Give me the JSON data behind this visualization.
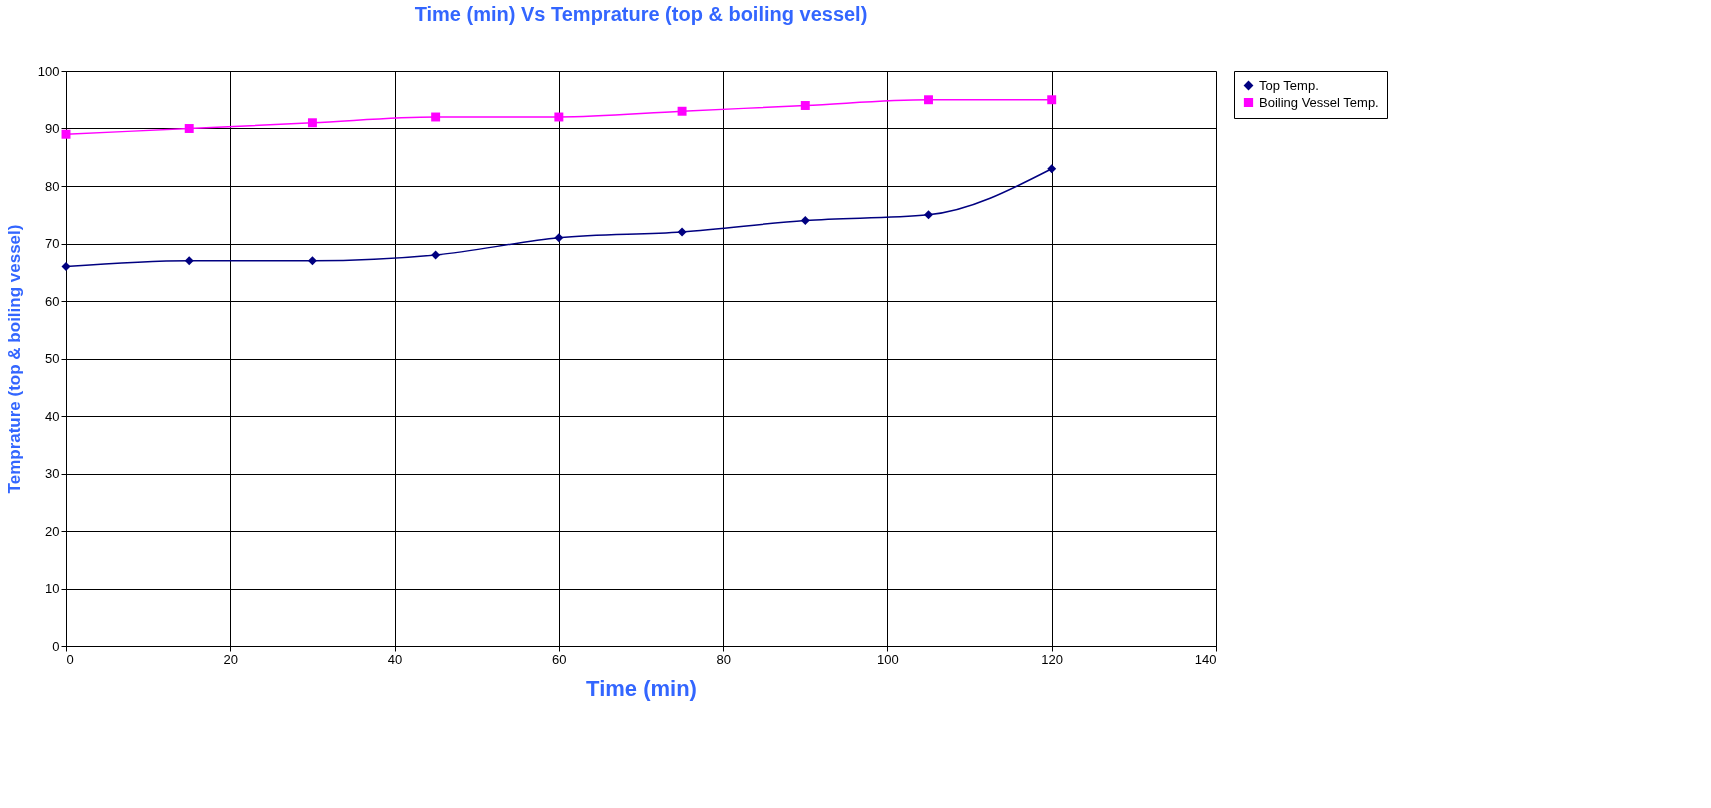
{
  "chart_data": {
    "type": "line",
    "title": "Time (min) Vs Temprature (top & boiling vessel)",
    "xlabel": "Time (min)",
    "ylabel": "Temprature (top & boiling vessel)",
    "x": [
      0,
      15,
      30,
      45,
      60,
      75,
      90,
      105,
      120
    ],
    "series": [
      {
        "name": "Top Temp.",
        "color": "#000080",
        "marker": "diamond",
        "values": [
          66,
          67,
          67,
          68,
          71,
          72,
          74,
          75,
          83
        ]
      },
      {
        "name": "Boiling Vessel Temp.",
        "color": "#ff00ff",
        "marker": "square",
        "values": [
          89,
          90,
          91,
          92,
          92,
          93,
          94,
          95,
          95
        ]
      }
    ],
    "xlim": [
      0,
      140
    ],
    "xticks": [
      0,
      20,
      40,
      60,
      80,
      100,
      120,
      140
    ],
    "ylim": [
      0,
      100
    ],
    "yticks": [
      0,
      10,
      20,
      30,
      40,
      50,
      60,
      70,
      80,
      90,
      100
    ],
    "grid": true,
    "legend": "right",
    "line_style": "solid"
  }
}
